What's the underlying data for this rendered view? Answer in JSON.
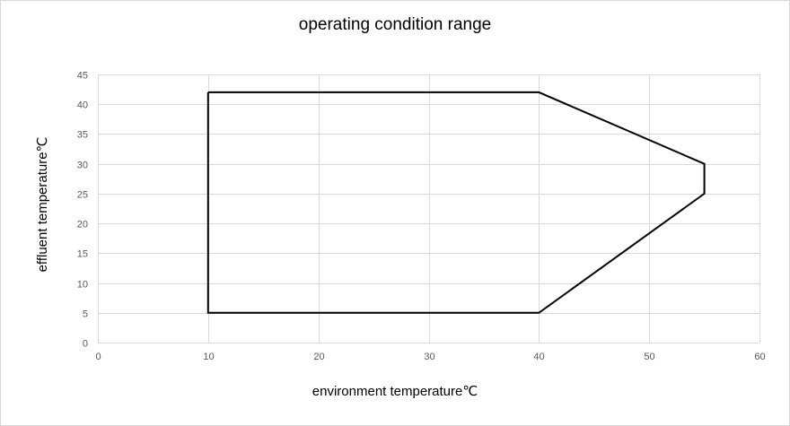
{
  "chart_data": {
    "type": "line",
    "title": "operating condition range",
    "xlabel": "environment temperature℃",
    "ylabel": "effluent temperature℃",
    "xlim": [
      0,
      60
    ],
    "ylim": [
      0,
      45
    ],
    "xticks": [
      0,
      10,
      20,
      30,
      40,
      50,
      60
    ],
    "yticks": [
      0,
      5,
      10,
      15,
      20,
      25,
      30,
      35,
      40,
      45
    ],
    "grid": true,
    "legend": "none",
    "series": [
      {
        "color": "#000000",
        "x": [
          10,
          40,
          55,
          55,
          40,
          10,
          10
        ],
        "y": [
          42,
          42,
          30,
          25,
          5,
          5,
          42
        ]
      }
    ]
  },
  "colors": {
    "gridline": "#d9d9d9",
    "tick_label": "#595959",
    "text": "#000000"
  }
}
